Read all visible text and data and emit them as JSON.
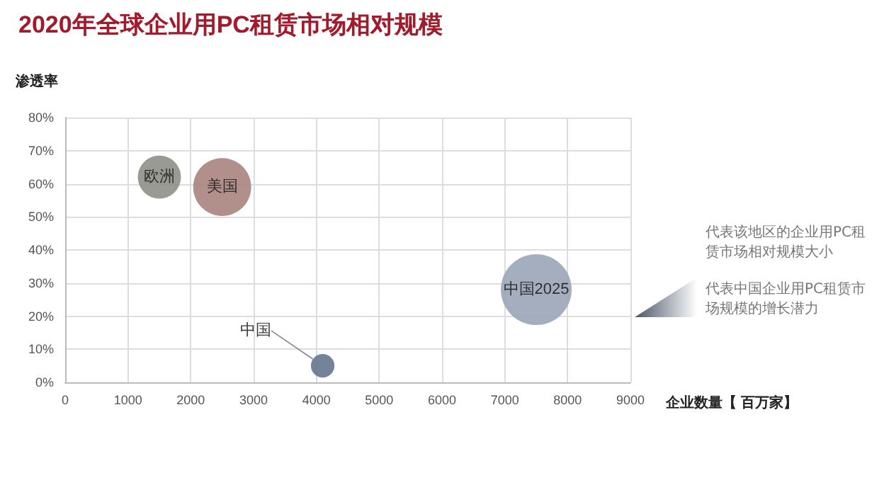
{
  "chart_data": {
    "type": "bubble",
    "title": "2020年全球企业用PC租赁市场相对规模",
    "xlabel": "企业数量【 百万家】",
    "ylabel": "渗透率",
    "xlim": [
      0,
      9000
    ],
    "xticks": [
      0,
      1000,
      2000,
      3000,
      4000,
      5000,
      6000,
      7000,
      8000,
      9000
    ],
    "ylim": [
      0,
      80
    ],
    "yticks": [
      {
        "value": 0,
        "label": "0%"
      },
      {
        "value": 10,
        "label": "10%"
      },
      {
        "value": 20,
        "label": "20%"
      },
      {
        "value": 30,
        "label": "30%"
      },
      {
        "value": 40,
        "label": "40%"
      },
      {
        "value": 50,
        "label": "50%"
      },
      {
        "value": 60,
        "label": "60%"
      },
      {
        "value": 70,
        "label": "70%"
      },
      {
        "value": 80,
        "label": "80%"
      }
    ],
    "grid": true,
    "legend": false,
    "series": [
      {
        "name": "欧洲",
        "color": "#8f8f88",
        "x": [
          1500
        ],
        "values": [
          62
        ],
        "sizes": [
          0.37
        ]
      },
      {
        "name": "美国",
        "color": "#a88480",
        "x": [
          2500
        ],
        "values": [
          59
        ],
        "sizes": [
          0.67
        ]
      },
      {
        "name": "中国2025",
        "color": "#9aa5b8",
        "x": [
          7500
        ],
        "values": [
          28
        ],
        "sizes": [
          1
        ]
      },
      {
        "name": "中国",
        "color": "#66758f",
        "x": [
          4100
        ],
        "values": [
          5
        ],
        "sizes": [
          0.11
        ]
      }
    ],
    "annotations": [
      "代表该地区的企业用PC租赁市场相对规模大小",
      "代表中国企业用PC租赁市场规模的增长潜力"
    ]
  }
}
